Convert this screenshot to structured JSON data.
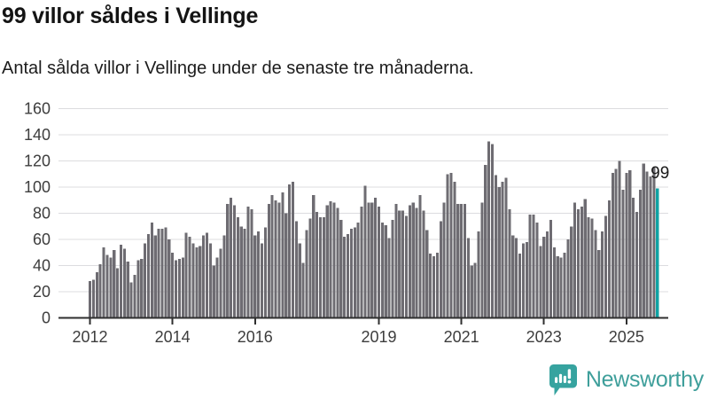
{
  "header": {
    "title": "99 villor såldes i Vellinge",
    "subtitle": "Antal sålda villor i Vellinge under de senaste tre månaderna."
  },
  "chart_data": {
    "type": "bar",
    "title": "99 villor såldes i Vellinge",
    "ylabel": "",
    "xlabel": "",
    "ylim": [
      0,
      160
    ],
    "yticks": [
      0,
      20,
      40,
      60,
      80,
      100,
      120,
      140,
      160
    ],
    "xticks": [
      {
        "label": "2012",
        "index": 0
      },
      {
        "label": "2014",
        "index": 24
      },
      {
        "label": "2016",
        "index": 48
      },
      {
        "label": "2019",
        "index": 84
      },
      {
        "label": "2021",
        "index": 108
      },
      {
        "label": "2023",
        "index": 132
      },
      {
        "label": "2025",
        "index": 156
      }
    ],
    "values": [
      28,
      29,
      35,
      41,
      54,
      48,
      46,
      52,
      38,
      56,
      53,
      43,
      27,
      33,
      44,
      45,
      57,
      64,
      73,
      63,
      68,
      68,
      69,
      60,
      50,
      44,
      45,
      46,
      65,
      62,
      57,
      54,
      55,
      63,
      65,
      57,
      40,
      46,
      53,
      63,
      87,
      92,
      86,
      77,
      70,
      68,
      85,
      83,
      63,
      66,
      57,
      69,
      87,
      94,
      90,
      88,
      96,
      80,
      102,
      104,
      74,
      57,
      42,
      67,
      76,
      94,
      81,
      77,
      77,
      86,
      89,
      88,
      84,
      75,
      62,
      64,
      68,
      69,
      73,
      85,
      101,
      88,
      88,
      92,
      85,
      73,
      71,
      61,
      75,
      87,
      82,
      82,
      78,
      86,
      88,
      84,
      94,
      82,
      67,
      49,
      47,
      50,
      74,
      88,
      110,
      111,
      104,
      87,
      87,
      87,
      61,
      40,
      42,
      66,
      88,
      117,
      135,
      133,
      109,
      100,
      104,
      107,
      83,
      63,
      61,
      49,
      57,
      58,
      79,
      79,
      73,
      55,
      62,
      66,
      75,
      54,
      47,
      46,
      50,
      60,
      70,
      88,
      83,
      85,
      91,
      77,
      76,
      67,
      52,
      66,
      78,
      90,
      111,
      114,
      120,
      98,
      111,
      113,
      92,
      81,
      98,
      118,
      112,
      108,
      115,
      99
    ],
    "highlight_index": 165,
    "annotation": {
      "text": "99",
      "index": 165
    },
    "bar_color": "#6e6c72",
    "highlight_color": "#10a3a4",
    "grid_color": "#dcdcdf",
    "axis_color": "#2f2f2f",
    "tick_label_color": "#3d3d3d",
    "annotation_color": "#1a1a1a",
    "grid": true,
    "legend": false
  },
  "footer": {
    "brand": "Newsworthy",
    "brand_color": "#3f9f9b",
    "icon_color": "#36a39f"
  }
}
